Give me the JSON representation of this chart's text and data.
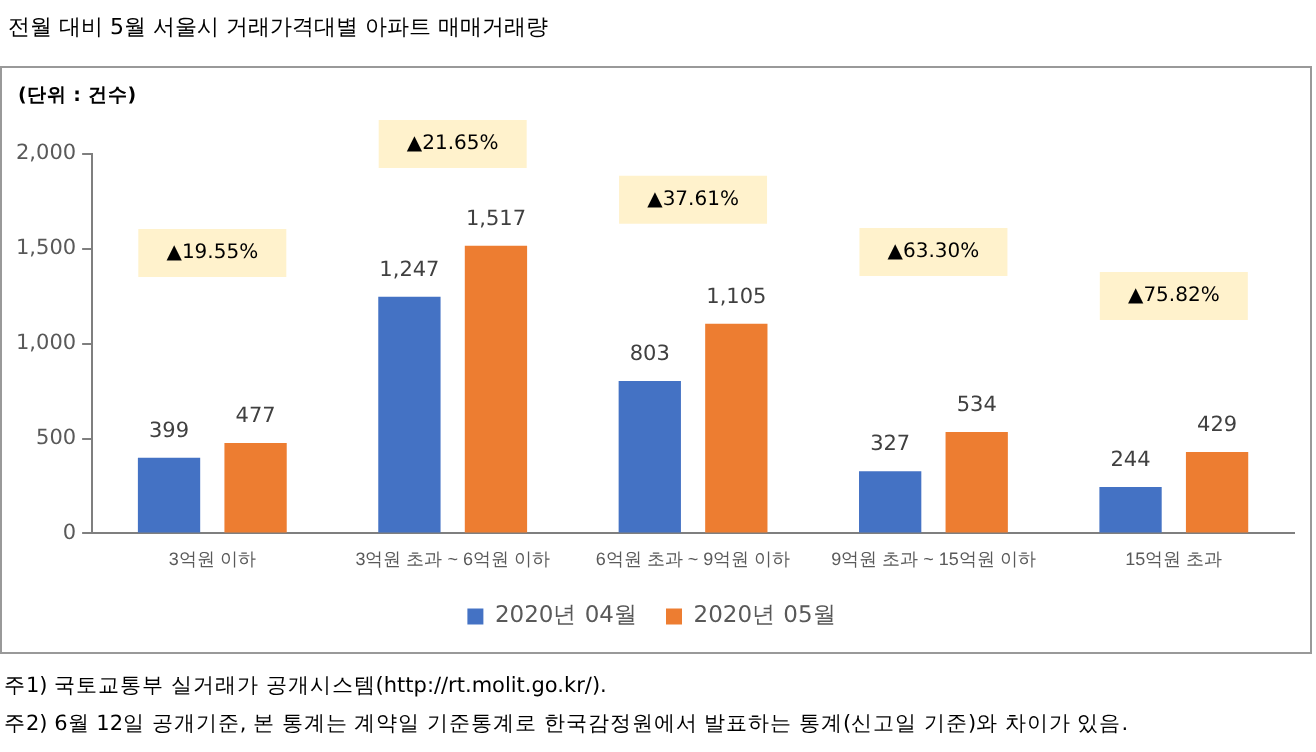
{
  "chart_data": {
    "type": "bar",
    "title": "전월 대비 5월 서울시 거래가격대별 아파트 매매거래량",
    "ylabel": "(단위 : 건수)",
    "categories": [
      "3억원 이하",
      "3억원 초과 ~ 6억원 이하",
      "6억원 초과 ~ 9억원 이하",
      "9억원 초과 ~ 15억원 이하",
      "15억원 초과"
    ],
    "series": [
      {
        "name": "2020년 04월",
        "color": "#4472c4",
        "values": [
          399,
          1247,
          803,
          327,
          244
        ],
        "value_labels": [
          "399",
          "1,247",
          "803",
          "327",
          "244"
        ]
      },
      {
        "name": "2020년 05월",
        "color": "#ed7d31",
        "values": [
          477,
          1517,
          1105,
          534,
          429
        ],
        "value_labels": [
          "477",
          "1,517",
          "1,105",
          "534",
          "429"
        ]
      }
    ],
    "ylim": [
      0,
      2000
    ],
    "yticks": [
      0,
      500,
      {
        "value": 1000,
        "label": "1,000"
      },
      {
        "value": 1500,
        "label": "1,500"
      },
      {
        "value": 2000,
        "label": "2,000"
      }
    ],
    "grid": false,
    "legend": "bottom",
    "annotations": [
      "▲19.55%",
      "▲21.65%",
      "▲37.61%",
      "▲63.30%",
      "▲75.82%",
      "주1) 국토교통부 실거래가 공개시스템(http://rt.molit.go.kr/).",
      "주2) 6월 12일 공개기준, 본 통계는 계약일 기준통계로 한국감정원에서 발표하는 통계(신고일 기준)와 차이가 있음."
    ]
  }
}
